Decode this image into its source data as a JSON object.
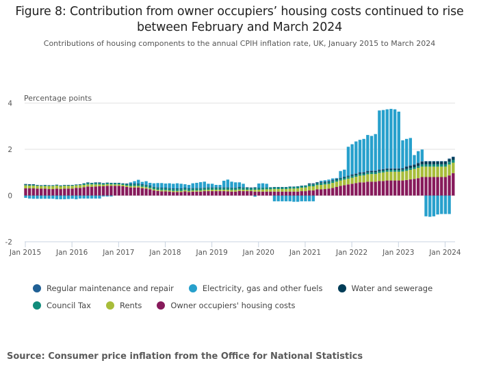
{
  "header": {
    "title": "Figure 8: Contribution from owner occupiers’ housing costs continued to rise between February and March 2024",
    "subtitle": "Contributions of housing components to the annual CPIH inflation rate, UK, January 2015 to March 2024"
  },
  "source": "Source: Consumer price inflation from the Office for National Statistics",
  "chart_data": {
    "type": "bar",
    "stacked": true,
    "title": "Figure 8: Contribution from owner occupiers’ housing costs continued to rise between February and March 2024",
    "subtitle": "Contributions of housing components to the annual CPIH inflation rate, UK, January 2015 to March 2024",
    "xlabel": "",
    "ylabel": "Percentage points",
    "ylim": [
      -2,
      4
    ],
    "yticks": [
      -2,
      0,
      2,
      4
    ],
    "xtick_labels": [
      "Jan 2015",
      "Jan 2016",
      "Jan 2017",
      "Jan 2018",
      "Jan 2019",
      "Jan 2020",
      "Jan 2021",
      "Jan 2022",
      "Jan 2023",
      "Jan 2024"
    ],
    "grid": true,
    "legend_position": "bottom",
    "period_start": "Jan 2015",
    "period_end": "Mar 2024",
    "series": [
      {
        "name": "Owner occupiers' housing costs",
        "color": "#871a5b",
        "values": [
          0.31,
          0.31,
          0.31,
          0.3,
          0.3,
          0.3,
          0.28,
          0.28,
          0.3,
          0.28,
          0.3,
          0.3,
          0.3,
          0.33,
          0.33,
          0.36,
          0.39,
          0.38,
          0.39,
          0.4,
          0.4,
          0.42,
          0.42,
          0.42,
          0.42,
          0.4,
          0.37,
          0.35,
          0.35,
          0.35,
          0.32,
          0.3,
          0.27,
          0.22,
          0.2,
          0.18,
          0.18,
          0.17,
          0.15,
          0.15,
          0.15,
          0.18,
          0.15,
          0.17,
          0.17,
          0.17,
          0.19,
          0.19,
          0.19,
          0.19,
          0.19,
          0.19,
          0.18,
          0.17,
          0.17,
          0.2,
          0.19,
          0.19,
          0.19,
          0.17,
          0.17,
          0.17,
          0.17,
          0.17,
          0.17,
          0.17,
          0.17,
          0.17,
          0.17,
          0.17,
          0.17,
          0.19,
          0.19,
          0.22,
          0.22,
          0.27,
          0.27,
          0.28,
          0.3,
          0.33,
          0.37,
          0.42,
          0.45,
          0.48,
          0.51,
          0.54,
          0.57,
          0.57,
          0.6,
          0.6,
          0.6,
          0.63,
          0.63,
          0.65,
          0.65,
          0.65,
          0.65,
          0.65,
          0.67,
          0.7,
          0.72,
          0.75,
          0.8,
          0.8,
          0.8,
          0.8,
          0.8,
          0.8,
          0.8,
          0.87,
          0.97
        ]
      },
      {
        "name": "Rents",
        "color": "#a8bd3a",
        "values": [
          0.13,
          0.12,
          0.12,
          0.12,
          0.11,
          0.11,
          0.13,
          0.13,
          0.13,
          0.12,
          0.12,
          0.12,
          0.12,
          0.11,
          0.12,
          0.1,
          0.09,
          0.1,
          0.09,
          0.08,
          0.07,
          0.07,
          0.06,
          0.06,
          0.06,
          0.06,
          0.06,
          0.06,
          0.06,
          0.06,
          0.06,
          0.06,
          0.05,
          0.05,
          0.05,
          0.05,
          0.05,
          0.05,
          0.05,
          0.05,
          0.05,
          0.05,
          0.05,
          0.05,
          0.05,
          0.05,
          0.05,
          0.06,
          0.06,
          0.06,
          0.06,
          0.06,
          0.07,
          0.07,
          0.07,
          0.06,
          0.06,
          0.06,
          0.05,
          0.08,
          0.08,
          0.09,
          0.1,
          0.1,
          0.11,
          0.11,
          0.11,
          0.11,
          0.13,
          0.13,
          0.14,
          0.15,
          0.16,
          0.18,
          0.18,
          0.18,
          0.19,
          0.2,
          0.2,
          0.22,
          0.23,
          0.23,
          0.24,
          0.25,
          0.26,
          0.27,
          0.29,
          0.3,
          0.32,
          0.33,
          0.33,
          0.35,
          0.37,
          0.38,
          0.38,
          0.38,
          0.38,
          0.39,
          0.4,
          0.41,
          0.43,
          0.45,
          0.45,
          0.45,
          0.45,
          0.45,
          0.45,
          0.45,
          0.45,
          0.47,
          0.45
        ]
      },
      {
        "name": "Council Tax",
        "color": "#118c7b",
        "values": [
          0.03,
          0.03,
          0.03,
          0.03,
          0.03,
          0.04,
          0.03,
          0.03,
          0.03,
          0.03,
          0.03,
          0.03,
          0.03,
          0.03,
          0.03,
          0.06,
          0.06,
          0.06,
          0.06,
          0.06,
          0.06,
          0.06,
          0.06,
          0.06,
          0.06,
          0.06,
          0.06,
          0.08,
          0.08,
          0.08,
          0.08,
          0.08,
          0.08,
          0.08,
          0.08,
          0.08,
          0.08,
          0.08,
          0.08,
          0.08,
          0.08,
          0.08,
          0.08,
          0.08,
          0.08,
          0.08,
          0.08,
          0.08,
          0.08,
          0.08,
          0.08,
          0.08,
          0.08,
          0.08,
          0.08,
          0.08,
          0.08,
          0.08,
          0.08,
          0.08,
          0.08,
          0.08,
          0.08,
          0.08,
          0.08,
          0.08,
          0.08,
          0.08,
          0.08,
          0.08,
          0.08,
          0.08,
          0.08,
          0.08,
          0.08,
          0.08,
          0.08,
          0.08,
          0.08,
          0.08,
          0.08,
          0.08,
          0.08,
          0.08,
          0.08,
          0.08,
          0.08,
          0.08,
          0.08,
          0.08,
          0.08,
          0.08,
          0.08,
          0.08,
          0.08,
          0.08,
          0.08,
          0.08,
          0.08,
          0.08,
          0.08,
          0.08,
          0.1,
          0.1,
          0.1,
          0.1,
          0.1,
          0.1,
          0.1,
          0.12,
          0.12
        ]
      },
      {
        "name": "Water and sewerage",
        "color": "#003c57",
        "values": [
          0.02,
          0.02,
          0.02,
          0.0,
          0.0,
          0.0,
          0.0,
          0.0,
          0.0,
          0.0,
          0.0,
          0.0,
          0.0,
          0.0,
          0.0,
          0.0,
          0.02,
          0.0,
          0.02,
          0.02,
          0.0,
          0.0,
          0.0,
          0.0,
          0.0,
          0.0,
          0.02,
          0.02,
          0.02,
          0.02,
          0.02,
          0.02,
          0.02,
          0.02,
          0.02,
          0.02,
          0.02,
          0.02,
          0.02,
          0.02,
          0.02,
          0.02,
          0.02,
          0.02,
          0.02,
          0.02,
          0.02,
          0.02,
          0.02,
          0.02,
          0.02,
          0.02,
          0.02,
          0.02,
          0.02,
          0.02,
          0.02,
          0.02,
          0.02,
          0.02,
          0.0,
          0.0,
          0.0,
          0.0,
          0.0,
          0.0,
          0.0,
          0.0,
          0.0,
          0.0,
          0.0,
          0.0,
          0.0,
          0.03,
          0.03,
          0.03,
          0.03,
          0.03,
          0.03,
          0.03,
          0.03,
          0.03,
          0.03,
          0.03,
          0.05,
          0.05,
          0.05,
          0.05,
          0.05,
          0.05,
          0.05,
          0.05,
          0.05,
          0.05,
          0.05,
          0.05,
          0.05,
          0.05,
          0.1,
          0.1,
          0.1,
          0.12,
          0.12,
          0.12,
          0.12,
          0.12,
          0.12,
          0.12,
          0.12,
          0.12,
          0.12
        ]
      },
      {
        "name": "Regular maintenance and repair",
        "color": "#206095",
        "values": [
          0.01,
          0.01,
          0.01,
          0.01,
          0.01,
          0.01,
          0.01,
          0.01,
          0.01,
          0.01,
          0.01,
          0.01,
          0.01,
          0.01,
          0.01,
          0.01,
          0.01,
          0.01,
          0.01,
          0.01,
          0.01,
          0.01,
          0.01,
          0.01,
          0.01,
          0.01,
          0.01,
          0.01,
          0.01,
          0.01,
          0.01,
          0.01,
          0.01,
          0.01,
          0.01,
          0.01,
          0.01,
          0.01,
          0.01,
          0.01,
          0.01,
          0.01,
          0.01,
          0.01,
          0.01,
          0.01,
          0.01,
          0.01,
          0.01,
          0.01,
          0.01,
          0.01,
          0.01,
          0.01,
          0.01,
          0.01,
          0.01,
          0.01,
          0.01,
          0.01,
          0.01,
          0.01,
          0.01,
          0.01,
          0.01,
          0.01,
          0.01,
          0.01,
          0.01,
          0.01,
          0.01,
          0.01,
          0.01,
          0.02,
          0.02,
          0.02,
          0.02,
          0.02,
          0.02,
          0.02,
          0.02,
          0.02,
          0.02,
          0.02,
          0.02,
          0.02,
          0.02,
          0.02,
          0.02,
          0.02,
          0.02,
          0.02,
          0.02,
          0.02,
          0.02,
          0.02,
          0.02,
          0.02,
          0.02,
          0.02,
          0.02,
          0.02,
          0.02,
          0.02,
          0.02,
          0.02,
          0.02,
          0.02,
          0.02,
          0.02,
          0.02
        ]
      },
      {
        "name": "Electricity, gas and other fuels",
        "color": "#27a0cc",
        "values": [
          -0.1,
          -0.13,
          -0.14,
          -0.14,
          -0.14,
          -0.14,
          -0.14,
          -0.14,
          -0.16,
          -0.16,
          -0.16,
          -0.15,
          -0.14,
          -0.16,
          -0.13,
          -0.13,
          -0.13,
          -0.13,
          -0.13,
          -0.13,
          -0.04,
          -0.04,
          -0.04,
          0.0,
          0.0,
          0.0,
          0.0,
          0.05,
          0.1,
          0.16,
          0.1,
          0.15,
          0.12,
          0.15,
          0.18,
          0.2,
          0.18,
          0.2,
          0.2,
          0.22,
          0.2,
          0.15,
          0.15,
          0.2,
          0.22,
          0.25,
          0.25,
          0.15,
          0.15,
          0.1,
          0.1,
          0.28,
          0.33,
          0.25,
          0.22,
          0.2,
          0.15,
          0.0,
          0.0,
          -0.05,
          0.18,
          0.18,
          0.15,
          0.0,
          -0.25,
          -0.25,
          -0.25,
          -0.25,
          -0.25,
          -0.27,
          -0.27,
          -0.25,
          -0.25,
          -0.25,
          -0.25,
          0.0,
          0.05,
          0.05,
          0.06,
          0.06,
          0.03,
          0.28,
          0.3,
          1.25,
          1.3,
          1.38,
          1.4,
          1.43,
          1.55,
          1.5,
          1.58,
          2.55,
          2.55,
          2.55,
          2.57,
          2.55,
          2.45,
          1.2,
          1.18,
          1.18,
          0.4,
          0.5,
          0.5,
          -0.9,
          -0.92,
          -0.9,
          -0.82,
          -0.8,
          -0.8,
          -0.8,
          0.0
        ]
      }
    ]
  },
  "legend": {
    "row1": [
      {
        "label": "Regular maintenance and repair",
        "color": "#206095"
      },
      {
        "label": "Electricity, gas and other fuels",
        "color": "#27a0cc"
      },
      {
        "label": "Water and sewerage",
        "color": "#003c57"
      }
    ],
    "row2": [
      {
        "label": "Council Tax",
        "color": "#118c7b"
      },
      {
        "label": "Rents",
        "color": "#a8bd3a"
      },
      {
        "label": "Owner occupiers' housing costs",
        "color": "#871a5b"
      }
    ]
  }
}
